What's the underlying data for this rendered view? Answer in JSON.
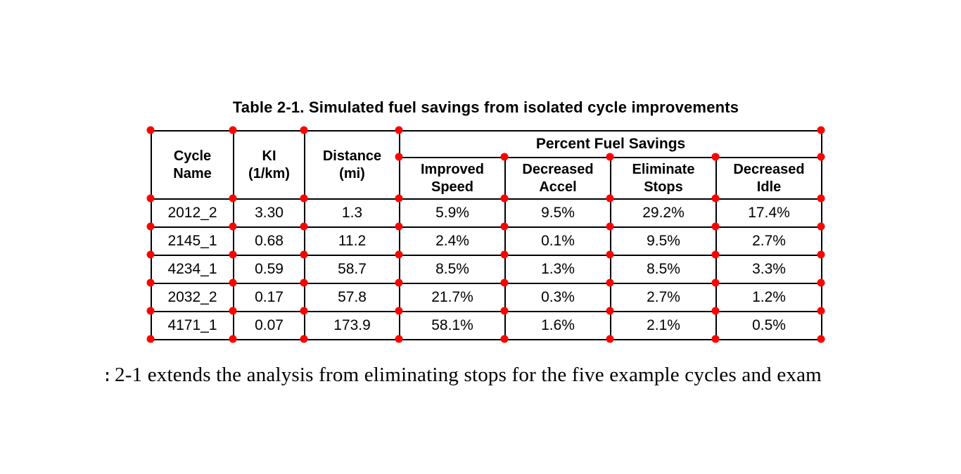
{
  "page": {
    "title": "Table 2-1. Simulated fuel savings from isolated cycle improvements",
    "body_text": "2-1 extends the analysis from eliminating stops for the five example cycles and exam"
  },
  "table": {
    "group_header": "Percent Fuel Savings",
    "columns": [
      "Cycle Name",
      "KI (1/km)",
      "Distance (mi)",
      "Improved Speed",
      "Decreased Accel",
      "Eliminate Stops",
      "Decreased Idle"
    ],
    "rows": [
      [
        "2012_2",
        "3.30",
        "1.3",
        "5.9%",
        "9.5%",
        "29.2%",
        "17.4%"
      ],
      [
        "2145_1",
        "0.68",
        "11.2",
        "2.4%",
        "0.1%",
        "9.5%",
        "2.7%"
      ],
      [
        "4234_1",
        "0.59",
        "58.7",
        "8.5%",
        "1.3%",
        "8.5%",
        "3.3%"
      ],
      [
        "2032_2",
        "0.17",
        "57.8",
        "21.7%",
        "0.3%",
        "2.7%",
        "1.2%"
      ],
      [
        "4171_1",
        "0.07",
        "173.9",
        "58.1%",
        "1.6%",
        "2.1%",
        "0.5%"
      ]
    ]
  },
  "annotation": {
    "marker_color": "#ff0000",
    "marker_shape": "circle"
  }
}
